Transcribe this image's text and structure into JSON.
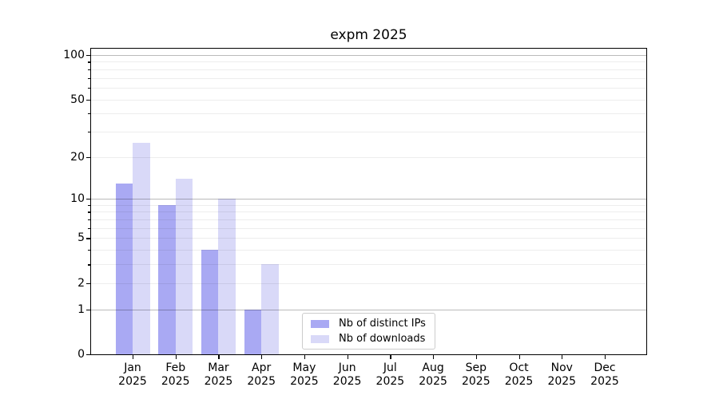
{
  "chart_data": {
    "type": "bar",
    "title": "expm 2025",
    "categories": [
      "Jan 2025",
      "Feb 2025",
      "Mar 2025",
      "Apr 2025",
      "May 2025",
      "Jun 2025",
      "Jul 2025",
      "Aug 2025",
      "Sep 2025",
      "Oct 2025",
      "Nov 2025",
      "Dec 2025"
    ],
    "x_tick_labels": [
      [
        "Jan",
        "2025"
      ],
      [
        "Feb",
        "2025"
      ],
      [
        "Mar",
        "2025"
      ],
      [
        "Apr",
        "2025"
      ],
      [
        "May",
        "2025"
      ],
      [
        "Jun",
        "2025"
      ],
      [
        "Jul",
        "2025"
      ],
      [
        "Aug",
        "2025"
      ],
      [
        "Sep",
        "2025"
      ],
      [
        "Oct",
        "2025"
      ],
      [
        "Nov",
        "2025"
      ],
      [
        "Dec",
        "2025"
      ]
    ],
    "series": [
      {
        "name": "Nb of distinct IPs",
        "color": "#a9a9f3",
        "values": [
          13,
          9,
          4,
          1,
          0,
          0,
          0,
          0,
          0,
          0,
          0,
          0
        ]
      },
      {
        "name": "Nb of downloads",
        "color": "#d9d9f8",
        "values": [
          25,
          14,
          10,
          3,
          0,
          0,
          0,
          0,
          0,
          0,
          0,
          0
        ]
      }
    ],
    "yscale": "log1p",
    "y_ticks": [
      0,
      1,
      2,
      5,
      10,
      20,
      50,
      100
    ],
    "y_major_ticks": [
      1,
      10,
      100
    ],
    "ylim": [
      0,
      100
    ],
    "grid": "horizontal",
    "legend_position": "lower center",
    "background": "#ffffff"
  },
  "legend": {
    "items": [
      {
        "label": "Nb of distinct IPs",
        "color": "#a9a9f3"
      },
      {
        "label": "Nb of downloads",
        "color": "#d9d9f8"
      }
    ]
  }
}
